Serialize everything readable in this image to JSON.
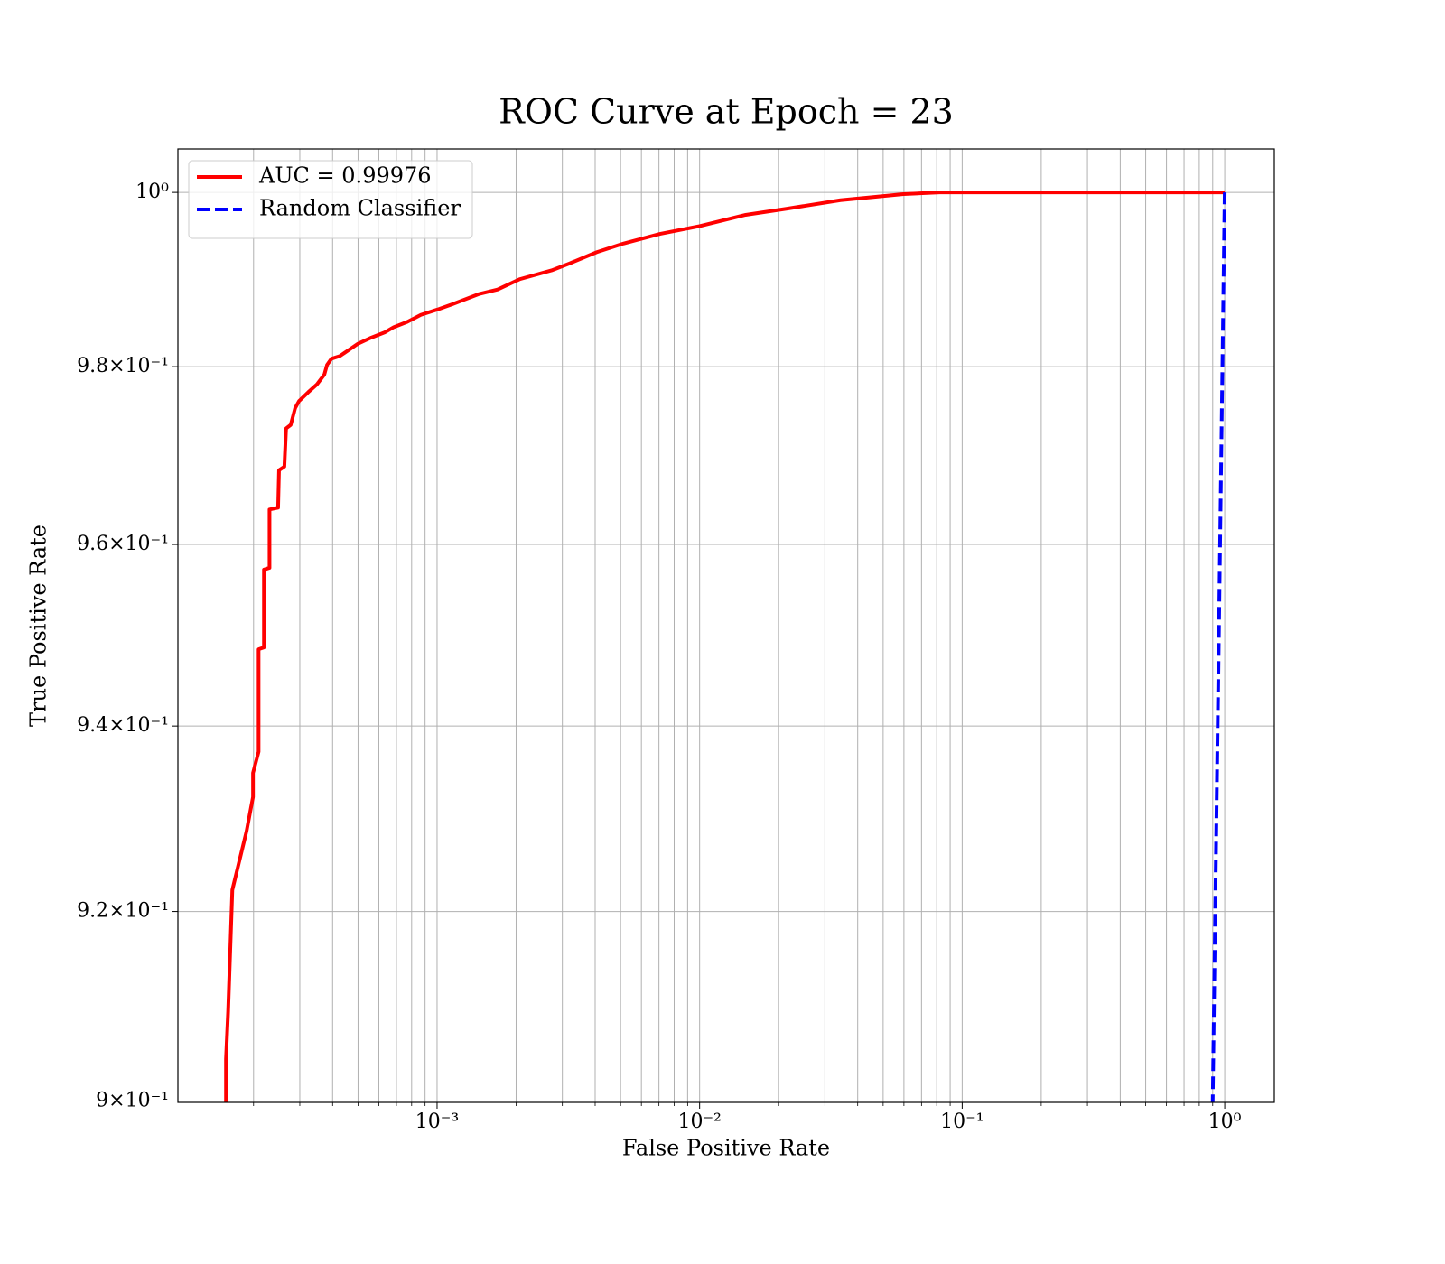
{
  "chart_data": {
    "type": "line",
    "title": "ROC Curve at Epoch = 23",
    "xlabel": "False Positive Rate",
    "ylabel": "True Positive Rate",
    "xscale": "log",
    "yscale": "log",
    "xlim": [
      0.000103,
      1.545
    ],
    "ylim": [
      0.89986,
      1.00505
    ],
    "xticks": [
      {
        "value": 0.001,
        "label": "10⁻³"
      },
      {
        "value": 0.01,
        "label": "10⁻²"
      },
      {
        "value": 0.1,
        "label": "10⁻¹"
      },
      {
        "value": 1,
        "label": "10⁰"
      }
    ],
    "xminorticks": [
      0.0002,
      0.0003,
      0.0004,
      0.0005,
      0.0006,
      0.0007,
      0.0008,
      0.0009,
      0.002,
      0.003,
      0.004,
      0.005,
      0.006,
      0.007,
      0.008,
      0.009,
      0.02,
      0.03,
      0.04,
      0.05,
      0.06,
      0.07,
      0.08,
      0.09,
      0.2,
      0.3,
      0.4,
      0.5,
      0.6,
      0.7,
      0.8,
      0.9
    ],
    "yticks": [
      {
        "value": 0.9,
        "label": "9×10⁻¹"
      },
      {
        "value": 0.92,
        "label": "9.2×10⁻¹"
      },
      {
        "value": 0.94,
        "label": "9.4×10⁻¹"
      },
      {
        "value": 0.96,
        "label": "9.6×10⁻¹"
      },
      {
        "value": 0.98,
        "label": "9.8×10⁻¹"
      },
      {
        "value": 1,
        "label": "10⁰"
      }
    ],
    "grid": true,
    "legend": "upper left",
    "series": [
      {
        "name": "AUC = 0.99976",
        "color": "#ff0000",
        "linestyle": "solid",
        "x": [
          0.000157,
          0.000157,
          0.00016,
          0.000166,
          0.000188,
          0.000199,
          0.000199,
          0.000209,
          0.000209,
          0.000219,
          0.000219,
          0.00023,
          0.00023,
          0.000248,
          0.00025,
          0.000262,
          0.000266,
          0.000277,
          0.000288,
          0.000298,
          0.000323,
          0.000349,
          0.000372,
          0.000381,
          0.000396,
          0.000426,
          0.000499,
          0.000561,
          0.000632,
          0.000684,
          0.00077,
          0.000867,
          0.001,
          0.00114,
          0.00145,
          0.0017,
          0.00207,
          0.00273,
          0.0032,
          0.00406,
          0.00514,
          0.00706,
          0.01,
          0.01497,
          0.0214,
          0.0344,
          0.0598,
          0.082,
          1
        ],
        "values": [
          0.899,
          0.9044,
          0.9094,
          0.9223,
          0.9286,
          0.9323,
          0.9349,
          0.9372,
          0.9484,
          0.9486,
          0.9572,
          0.9574,
          0.9639,
          0.9641,
          0.9683,
          0.9687,
          0.973,
          0.9734,
          0.9753,
          0.9761,
          0.9771,
          0.978,
          0.9791,
          0.9802,
          0.9809,
          0.9812,
          0.9826,
          0.9833,
          0.9839,
          0.9845,
          0.9851,
          0.9859,
          0.9865,
          0.9871,
          0.9883,
          0.9888,
          0.99,
          0.991,
          0.9918,
          0.9931,
          0.9941,
          0.9952,
          0.9961,
          0.9974,
          0.9981,
          0.9991,
          0.9998,
          1,
          1
        ]
      },
      {
        "name": "Random Classifier",
        "color": "#0000ff",
        "linestyle": "dashed",
        "x": [
          0.89,
          1
        ],
        "values": [
          0.89,
          1
        ]
      }
    ]
  }
}
